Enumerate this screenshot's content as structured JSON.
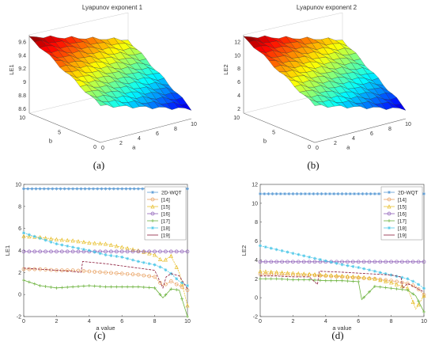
{
  "chart_data": [
    {
      "id": "a",
      "type": "surface",
      "title": "Lyapunov exponent 1",
      "xlabel": "a",
      "ylabel": "b",
      "zlabel": "LE1",
      "x_ticks": [
        "0",
        "2",
        "4",
        "6",
        "8",
        "10"
      ],
      "y_ticks": [
        "0",
        "5",
        "10"
      ],
      "z_ticks": [
        "8.6",
        "8.8",
        "9",
        "9.2",
        "9.4",
        "9.6"
      ],
      "zlim": [
        8.6,
        9.6
      ],
      "caption": "(a)",
      "colormap": [
        "#00008f",
        "#0000ff",
        "#0080ff",
        "#00ffff",
        "#80ff80",
        "#ffff00",
        "#ff8000",
        "#ff0000",
        "#800000"
      ]
    },
    {
      "id": "b",
      "type": "surface",
      "title": "Lyapunov exponent 2",
      "xlabel": "a",
      "ylabel": "b",
      "zlabel": "LE2",
      "x_ticks": [
        "0",
        "2",
        "4",
        "6",
        "8",
        "10"
      ],
      "y_ticks": [
        "0",
        "5",
        "10"
      ],
      "z_ticks": [
        "2",
        "4",
        "6",
        "8",
        "10",
        "12"
      ],
      "zlim": [
        2,
        12
      ],
      "caption": "(b)",
      "colormap": [
        "#00008f",
        "#0000ff",
        "#0080ff",
        "#00ffff",
        "#80ff80",
        "#ffff00",
        "#ff8000",
        "#ff0000",
        "#800000"
      ]
    },
    {
      "id": "c",
      "type": "line",
      "xlabel": "a value",
      "ylabel": "LE1",
      "xlim": [
        0,
        10
      ],
      "ylim": [
        -2,
        10
      ],
      "x_ticks": [
        "0",
        "2",
        "4",
        "6",
        "8",
        "10"
      ],
      "y_ticks": [
        "-2",
        "0",
        "2",
        "4",
        "6",
        "8",
        "10"
      ],
      "caption": "(c)",
      "legend_position": "top-right",
      "series": [
        {
          "name": "2D-WQT",
          "color": "#5b9bd5",
          "marker": "*",
          "x": [
            0,
            10
          ],
          "y": [
            9.6,
            9.6
          ]
        },
        {
          "name": "[14]",
          "color": "#e8a060",
          "marker": "o",
          "x": [
            0,
            1,
            2,
            3,
            4,
            5,
            6,
            7,
            8,
            8.5,
            9,
            9.5,
            10
          ],
          "y": [
            2.3,
            2.3,
            2.2,
            2.2,
            2.1,
            2.0,
            1.9,
            1.8,
            1.6,
            0.8,
            1.2,
            0.8,
            0.4
          ]
        },
        {
          "name": "[15]",
          "color": "#e8c030",
          "marker": "^",
          "x": [
            0,
            1,
            2,
            3,
            4,
            5,
            6,
            7,
            8,
            8.5,
            9,
            9.5,
            10
          ],
          "y": [
            5.3,
            5.2,
            5.0,
            4.9,
            4.7,
            4.6,
            4.3,
            4.0,
            3.6,
            3.0,
            3.5,
            2.0,
            -1.0
          ]
        },
        {
          "name": "[16]",
          "color": "#8e5fb8",
          "marker": "o",
          "x": [
            0,
            10
          ],
          "y": [
            3.9,
            3.9
          ]
        },
        {
          "name": "[17]",
          "color": "#6db33f",
          "marker": "+",
          "x": [
            0,
            1,
            2,
            3,
            4,
            5,
            6,
            7,
            8,
            8.5,
            9,
            9.5,
            10
          ],
          "y": [
            1.3,
            0.8,
            0.6,
            0.7,
            0.8,
            0.7,
            0.7,
            0.7,
            0.6,
            -0.3,
            0.5,
            0.4,
            -2.0
          ]
        },
        {
          "name": "[18]",
          "color": "#4fc8e8",
          "marker": "*",
          "x": [
            0,
            1,
            2,
            3,
            4,
            5,
            6,
            7,
            8,
            8.5,
            9,
            9.5,
            10
          ],
          "y": [
            5.6,
            5.1,
            4.6,
            4.3,
            4.0,
            3.6,
            3.4,
            3.0,
            2.7,
            2.4,
            1.9,
            1.2,
            0.8
          ]
        },
        {
          "name": "[19]",
          "color": "#8b1a3a",
          "marker": "none",
          "x": [
            0,
            1,
            2,
            3,
            3.5,
            3.6,
            5,
            6,
            7,
            8,
            8.5,
            8.7,
            9,
            9.5,
            10
          ],
          "y": [
            2.4,
            2.3,
            2.2,
            2.1,
            2.0,
            3.0,
            2.8,
            2.6,
            2.4,
            2.2,
            0.6,
            1.6,
            1.9,
            1.7,
            0.5
          ]
        }
      ]
    },
    {
      "id": "d",
      "type": "line",
      "xlabel": "a value",
      "ylabel": "LE2",
      "xlim": [
        0,
        10
      ],
      "ylim": [
        -2,
        12
      ],
      "x_ticks": [
        "0",
        "2",
        "4",
        "6",
        "8",
        "10"
      ],
      "y_ticks": [
        "-2",
        "0",
        "2",
        "4",
        "6",
        "8",
        "10",
        "12"
      ],
      "caption": "(d)",
      "legend_position": "top-right",
      "series": [
        {
          "name": "2D-WQT",
          "color": "#5b9bd5",
          "marker": "*",
          "x": [
            0,
            10
          ],
          "y": [
            11.0,
            11.0
          ]
        },
        {
          "name": "[14]",
          "color": "#e8a060",
          "marker": "o",
          "x": [
            0,
            1,
            2,
            3,
            4,
            5,
            6,
            7,
            8,
            9,
            9.5,
            10
          ],
          "y": [
            2.5,
            2.5,
            2.4,
            2.4,
            2.3,
            2.2,
            2.1,
            2.0,
            1.8,
            1.5,
            1.2,
            0.3
          ]
        },
        {
          "name": "[15]",
          "color": "#e8c030",
          "marker": "^",
          "x": [
            0,
            1,
            2,
            3,
            4,
            5,
            6,
            7,
            8,
            9,
            9.5,
            10
          ],
          "y": [
            2.8,
            2.7,
            2.6,
            2.5,
            2.4,
            2.3,
            2.2,
            2.0,
            1.6,
            1.0,
            -1.2,
            0.2
          ]
        },
        {
          "name": "[16]",
          "color": "#8e5fb8",
          "marker": "o",
          "x": [
            0,
            10
          ],
          "y": [
            3.8,
            3.8
          ]
        },
        {
          "name": "[17]",
          "color": "#6db33f",
          "marker": "+",
          "x": [
            0,
            1,
            2,
            3,
            4,
            5,
            6,
            6.2,
            7,
            8,
            9,
            9.5,
            10
          ],
          "y": [
            2.0,
            2.0,
            1.9,
            1.9,
            1.8,
            1.8,
            1.7,
            -0.2,
            1.2,
            1.0,
            0.8,
            0.2,
            -1.5
          ]
        },
        {
          "name": "[18]",
          "color": "#4fc8e8",
          "marker": "*",
          "x": [
            0,
            1,
            2,
            3,
            4,
            5,
            6,
            7,
            8,
            9,
            9.5,
            10
          ],
          "y": [
            5.5,
            5.1,
            4.7,
            4.3,
            3.9,
            3.5,
            3.2,
            2.8,
            2.4,
            2.0,
            1.6,
            1.0
          ]
        },
        {
          "name": "[19]",
          "color": "#8b1a3a",
          "marker": "none",
          "x": [
            0,
            1,
            2,
            3,
            3.5,
            3.6,
            5,
            6,
            7,
            8,
            8.6,
            8.7,
            9,
            10
          ],
          "y": [
            2.3,
            2.3,
            2.2,
            2.2,
            1.4,
            2.8,
            2.7,
            2.6,
            2.5,
            2.4,
            2.2,
            1.0,
            1.5,
            0.6
          ]
        }
      ]
    }
  ]
}
